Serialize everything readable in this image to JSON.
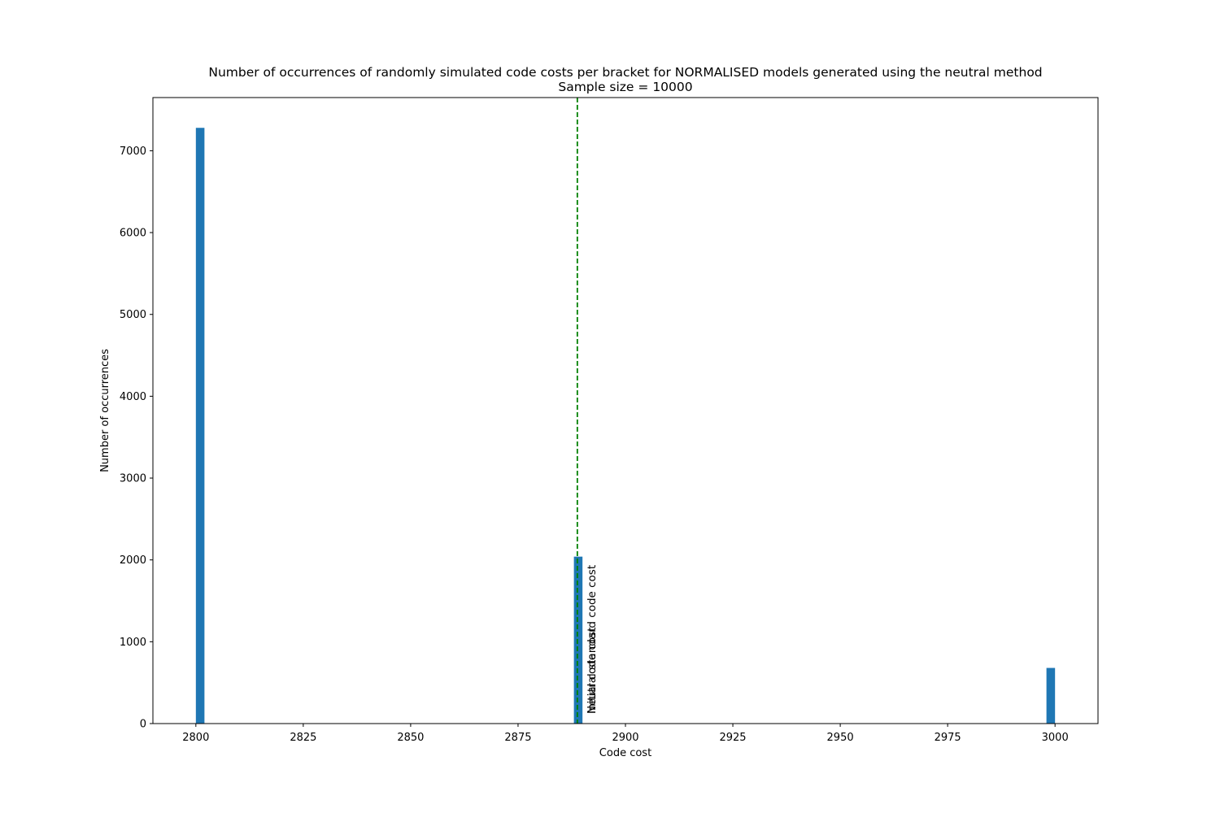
{
  "chart_data": {
    "type": "bar",
    "title": "Number of occurrences of randomly simulated code costs per bracket for NORMALISED models generated using the neutral method",
    "subtitle": "Sample size = 10000",
    "xlabel": "Code cost",
    "ylabel": "Number of occurrences",
    "xlim": [
      2790,
      3010
    ],
    "ylim": [
      0,
      7650
    ],
    "xticks": [
      2800,
      2825,
      2850,
      2875,
      2900,
      2925,
      2950,
      2975,
      3000
    ],
    "yticks": [
      0,
      1000,
      2000,
      3000,
      4000,
      5000,
      6000,
      7000
    ],
    "bin_width": 2,
    "bars": [
      {
        "x_start": 2800,
        "value": 7280
      },
      {
        "x_start": 2888,
        "value": 2040
      },
      {
        "x_start": 2998,
        "value": 680
      }
    ],
    "reference_lines": [
      {
        "x": 2888.8,
        "color": "#008000",
        "style": "dashed",
        "labels": [
          "Neutral standard code cost",
          "Initial code cost"
        ]
      }
    ],
    "grid": false,
    "bar_color": "#1f77b4"
  }
}
